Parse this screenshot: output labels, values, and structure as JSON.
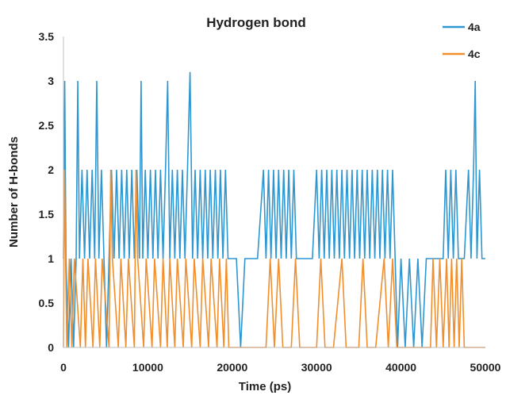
{
  "chart_data": {
    "type": "line",
    "title": "Hydrogen bond",
    "xlabel": "Time (ps)",
    "ylabel": "Number of H-bonds",
    "xlim": [
      0,
      50000
    ],
    "ylim": [
      0,
      3.5
    ],
    "xticks": [
      "0",
      "10000",
      "20000",
      "30000",
      "40000",
      "50000"
    ],
    "yticks": [
      "0",
      "0.5",
      "1",
      "1.5",
      "2",
      "2.5",
      "3",
      "3.5"
    ],
    "grid": false,
    "legend_position": "top-right",
    "series": [
      {
        "name": "4a",
        "color": "#2e97d1",
        "points": [
          [
            0,
            1
          ],
          [
            150,
            3
          ],
          [
            300,
            1
          ],
          [
            600,
            0
          ],
          [
            900,
            1
          ],
          [
            1200,
            0
          ],
          [
            1500,
            1
          ],
          [
            1700,
            3
          ],
          [
            1900,
            1
          ],
          [
            2200,
            2
          ],
          [
            2500,
            1
          ],
          [
            2800,
            2
          ],
          [
            3100,
            1
          ],
          [
            3400,
            2
          ],
          [
            3700,
            1
          ],
          [
            3950,
            3
          ],
          [
            4200,
            1
          ],
          [
            4500,
            2
          ],
          [
            4800,
            1
          ],
          [
            5100,
            0
          ],
          [
            5400,
            1
          ],
          [
            5700,
            2
          ],
          [
            6000,
            1
          ],
          [
            6300,
            2
          ],
          [
            6600,
            1
          ],
          [
            6900,
            2
          ],
          [
            7200,
            1
          ],
          [
            7500,
            2
          ],
          [
            7800,
            1
          ],
          [
            8100,
            2
          ],
          [
            8400,
            1
          ],
          [
            8700,
            2
          ],
          [
            9000,
            1
          ],
          [
            9200,
            3
          ],
          [
            9400,
            1
          ],
          [
            9700,
            2
          ],
          [
            10000,
            1
          ],
          [
            10300,
            2
          ],
          [
            10600,
            1
          ],
          [
            10900,
            2
          ],
          [
            11200,
            1
          ],
          [
            11500,
            2
          ],
          [
            11800,
            1
          ],
          [
            12100,
            2
          ],
          [
            12350,
            3
          ],
          [
            12600,
            1
          ],
          [
            12900,
            2
          ],
          [
            13200,
            1
          ],
          [
            13500,
            2
          ],
          [
            13800,
            1
          ],
          [
            14100,
            2
          ],
          [
            14400,
            1
          ],
          [
            14700,
            2
          ],
          [
            15000,
            3.1
          ],
          [
            15300,
            1
          ],
          [
            15600,
            2
          ],
          [
            15900,
            1
          ],
          [
            16200,
            2
          ],
          [
            16500,
            1
          ],
          [
            16800,
            2
          ],
          [
            17100,
            1
          ],
          [
            17400,
            2
          ],
          [
            17700,
            1
          ],
          [
            18000,
            2
          ],
          [
            18300,
            1
          ],
          [
            18600,
            2
          ],
          [
            18900,
            1
          ],
          [
            19200,
            2
          ],
          [
            19500,
            1
          ],
          [
            20500,
            1
          ],
          [
            21000,
            0
          ],
          [
            21500,
            1
          ],
          [
            22000,
            1
          ],
          [
            23000,
            1
          ],
          [
            23700,
            2
          ],
          [
            24000,
            1
          ],
          [
            24300,
            2
          ],
          [
            24600,
            1
          ],
          [
            24900,
            2
          ],
          [
            25200,
            1
          ],
          [
            25500,
            2
          ],
          [
            25800,
            1
          ],
          [
            26100,
            2
          ],
          [
            26400,
            1
          ],
          [
            26700,
            2
          ],
          [
            27000,
            1
          ],
          [
            27300,
            2
          ],
          [
            27600,
            1
          ],
          [
            28000,
            1
          ],
          [
            29000,
            1
          ],
          [
            29500,
            1
          ],
          [
            30000,
            2
          ],
          [
            30300,
            1
          ],
          [
            30600,
            2
          ],
          [
            30900,
            1
          ],
          [
            31200,
            2
          ],
          [
            31500,
            1
          ],
          [
            31800,
            2
          ],
          [
            32100,
            1
          ],
          [
            32400,
            2
          ],
          [
            32700,
            1
          ],
          [
            33000,
            2
          ],
          [
            33300,
            1
          ],
          [
            33600,
            2
          ],
          [
            33900,
            1
          ],
          [
            34200,
            2
          ],
          [
            34500,
            1
          ],
          [
            34800,
            2
          ],
          [
            35100,
            1
          ],
          [
            35400,
            2
          ],
          [
            35700,
            1
          ],
          [
            36000,
            2
          ],
          [
            36300,
            1
          ],
          [
            36600,
            2
          ],
          [
            36900,
            1
          ],
          [
            37200,
            2
          ],
          [
            37500,
            1
          ],
          [
            37800,
            2
          ],
          [
            38100,
            1
          ],
          [
            38400,
            2
          ],
          [
            38700,
            1
          ],
          [
            39000,
            2
          ],
          [
            39300,
            1
          ],
          [
            39600,
            0
          ],
          [
            40000,
            1
          ],
          [
            40500,
            0
          ],
          [
            41000,
            1
          ],
          [
            41500,
            0
          ],
          [
            42000,
            1
          ],
          [
            42500,
            0
          ],
          [
            43000,
            1
          ],
          [
            44000,
            1
          ],
          [
            45000,
            1
          ],
          [
            45300,
            2
          ],
          [
            45600,
            1
          ],
          [
            45900,
            2
          ],
          [
            46200,
            1
          ],
          [
            46500,
            2
          ],
          [
            46800,
            1
          ],
          [
            47500,
            1
          ],
          [
            48000,
            2
          ],
          [
            48300,
            1
          ],
          [
            48600,
            2
          ],
          [
            48800,
            3
          ],
          [
            49000,
            1
          ],
          [
            49300,
            2
          ],
          [
            49600,
            1
          ],
          [
            50000,
            1
          ]
        ]
      },
      {
        "name": "4c",
        "color": "#f28e2b",
        "points": [
          [
            0,
            0
          ],
          [
            120,
            2
          ],
          [
            250,
            1
          ],
          [
            400,
            0
          ],
          [
            700,
            1
          ],
          [
            1000,
            0
          ],
          [
            1300,
            1
          ],
          [
            2000,
            0
          ],
          [
            2300,
            1
          ],
          [
            2600,
            0
          ],
          [
            2900,
            1
          ],
          [
            3500,
            0
          ],
          [
            3800,
            1
          ],
          [
            4300,
            0
          ],
          [
            4600,
            1
          ],
          [
            5400,
            0
          ],
          [
            5600,
            2
          ],
          [
            5800,
            1
          ],
          [
            6500,
            0
          ],
          [
            6800,
            1
          ],
          [
            7400,
            0
          ],
          [
            7700,
            1
          ],
          [
            8400,
            0
          ],
          [
            8600,
            2
          ],
          [
            8800,
            1
          ],
          [
            9500,
            0
          ],
          [
            9800,
            1
          ],
          [
            10500,
            0
          ],
          [
            10800,
            1
          ],
          [
            11500,
            0
          ],
          [
            11800,
            1
          ],
          [
            12300,
            0
          ],
          [
            12600,
            1
          ],
          [
            13200,
            0
          ],
          [
            13500,
            1
          ],
          [
            14200,
            0
          ],
          [
            14500,
            1
          ],
          [
            15200,
            0
          ],
          [
            15500,
            1
          ],
          [
            16200,
            0
          ],
          [
            16500,
            1
          ],
          [
            17200,
            0
          ],
          [
            17500,
            1
          ],
          [
            18200,
            0
          ],
          [
            18500,
            1
          ],
          [
            19000,
            0
          ],
          [
            19300,
            1
          ],
          [
            19600,
            0
          ],
          [
            20000,
            0
          ],
          [
            23000,
            0
          ],
          [
            24000,
            0
          ],
          [
            24500,
            1
          ],
          [
            25000,
            0
          ],
          [
            25500,
            1
          ],
          [
            26000,
            0
          ],
          [
            27000,
            0
          ],
          [
            27500,
            1
          ],
          [
            28000,
            0
          ],
          [
            29000,
            0
          ],
          [
            30000,
            0
          ],
          [
            30500,
            1
          ],
          [
            31000,
            0
          ],
          [
            32000,
            0
          ],
          [
            33000,
            1
          ],
          [
            33500,
            0
          ],
          [
            34000,
            0
          ],
          [
            35000,
            0
          ],
          [
            35500,
            1
          ],
          [
            36000,
            0
          ],
          [
            37000,
            0
          ],
          [
            38000,
            1
          ],
          [
            38500,
            0
          ],
          [
            39000,
            1
          ],
          [
            39500,
            0
          ],
          [
            42000,
            0
          ],
          [
            43500,
            0
          ],
          [
            43800,
            1
          ],
          [
            44200,
            0
          ],
          [
            44600,
            1
          ],
          [
            45000,
            0
          ],
          [
            45400,
            1
          ],
          [
            45700,
            0
          ],
          [
            46000,
            1
          ],
          [
            46300,
            0
          ],
          [
            46600,
            1
          ],
          [
            46900,
            0
          ],
          [
            47200,
            1
          ],
          [
            47500,
            0
          ],
          [
            48000,
            0
          ],
          [
            49000,
            0
          ],
          [
            50000,
            0
          ]
        ]
      }
    ]
  }
}
